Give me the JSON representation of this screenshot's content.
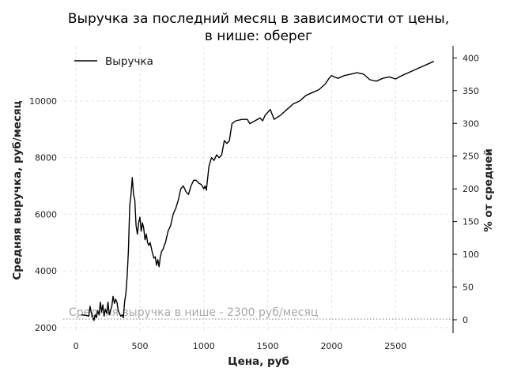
{
  "chart_data": {
    "type": "line",
    "title_lines": [
      "Выручка за последний месяц в зависимости от цены,",
      "в нише: оберег"
    ],
    "xlabel": "Цена, руб",
    "ylabel": "Средняя выручка, руб/месяц",
    "ylabel_right": "% от средней",
    "xlim": [
      -100,
      2950
    ],
    "ylim": [
      1800,
      11950
    ],
    "ylim_right": [
      -20.5,
      418.5
    ],
    "x_ticks": [
      0,
      500,
      1000,
      1500,
      2000,
      2500
    ],
    "y_ticks": [
      2000,
      4000,
      6000,
      8000,
      10000
    ],
    "y_ticks_right": [
      0,
      50,
      100,
      150,
      200,
      250,
      300,
      350,
      400
    ],
    "grid": true,
    "legend_position": "top-left",
    "series": [
      {
        "name": "Выручка",
        "color": "#000000",
        "x": [
          40,
          80,
          100,
          110,
          120,
          130,
          140,
          150,
          160,
          170,
          180,
          190,
          200,
          210,
          220,
          230,
          240,
          250,
          260,
          270,
          280,
          290,
          300,
          310,
          320,
          330,
          340,
          350,
          360,
          370,
          380,
          390,
          400,
          410,
          420,
          430,
          440,
          450,
          460,
          470,
          480,
          490,
          500,
          510,
          520,
          530,
          540,
          550,
          560,
          570,
          580,
          590,
          600,
          610,
          620,
          630,
          640,
          650,
          660,
          670,
          680,
          690,
          700,
          720,
          740,
          760,
          780,
          800,
          820,
          840,
          860,
          880,
          900,
          920,
          940,
          960,
          980,
          1000,
          1010,
          1020,
          1040,
          1060,
          1080,
          1100,
          1120,
          1140,
          1160,
          1180,
          1200,
          1220,
          1250,
          1300,
          1340,
          1360,
          1400,
          1440,
          1460,
          1480,
          1500,
          1510,
          1520,
          1550,
          1600,
          1650,
          1700,
          1750,
          1800,
          1850,
          1900,
          1950,
          1980,
          2000,
          2020,
          2050,
          2100,
          2150,
          2200,
          2250,
          2300,
          2350,
          2400,
          2450,
          2500,
          2550,
          2600,
          2650,
          2700,
          2750,
          2800
        ],
        "values": [
          2450,
          2430,
          2400,
          2750,
          2500,
          2380,
          2250,
          2450,
          2350,
          2600,
          2450,
          2900,
          2550,
          2800,
          2400,
          2650,
          2500,
          2900,
          2450,
          2600,
          2750,
          3100,
          2850,
          3000,
          2900,
          2600,
          2500,
          2400,
          2450,
          2350,
          2900,
          3200,
          3800,
          4700,
          6300,
          6700,
          7300,
          6700,
          6500,
          5600,
          5300,
          5700,
          5900,
          5400,
          5700,
          5500,
          5100,
          5300,
          5000,
          4900,
          5000,
          4800,
          4600,
          4450,
          4500,
          4200,
          4400,
          4150,
          4500,
          4700,
          4750,
          4900,
          5000,
          5400,
          5600,
          6000,
          6200,
          6500,
          6900,
          7000,
          6800,
          6700,
          7000,
          7200,
          7200,
          7100,
          7050,
          6900,
          7000,
          6850,
          7700,
          8000,
          7900,
          8100,
          8000,
          8100,
          8600,
          8500,
          8600,
          9200,
          9300,
          9350,
          9350,
          9200,
          9300,
          9400,
          9300,
          9500,
          9600,
          9650,
          9700,
          9350,
          9500,
          9700,
          9900,
          10000,
          10200,
          10300,
          10400,
          10600,
          10800,
          10900,
          10850,
          10800,
          10900,
          10950,
          11000,
          10950,
          10750,
          10700,
          10800,
          10850,
          10780,
          10900,
          11000,
          11100,
          11200,
          11300,
          11400
        ]
      }
    ],
    "annotations": [
      {
        "text": "Средняя выручка в нише - 2300 руб/месяц",
        "y": 2300
      }
    ]
  }
}
